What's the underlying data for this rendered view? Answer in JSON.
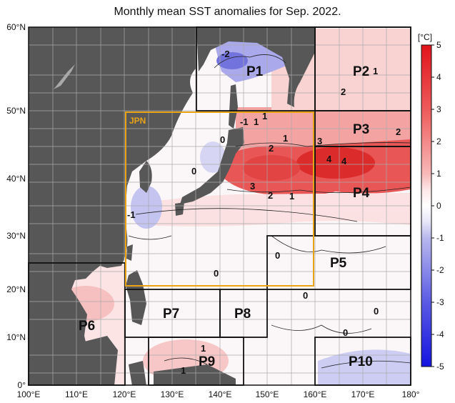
{
  "title": "Monthly mean SST anomalies for Sep. 2022.",
  "colors": {
    "land": "#555555",
    "ocean_base": "#f7f3f4",
    "jpn_box": "#e8a317",
    "grid": "#bbbbbb"
  },
  "axes": {
    "lon_ticks": [
      "100°E",
      "110°E",
      "120°E",
      "130°E",
      "140°E",
      "150°E",
      "160°E",
      "170°E",
      "180°"
    ],
    "lat_ticks": [
      "60°N",
      "50°N",
      "40°N",
      "30°N",
      "20°N",
      "10°N",
      "0°"
    ]
  },
  "regions": {
    "jpn": "JPN",
    "p1": "P1",
    "p2": "P2",
    "p3": "P3",
    "p4": "P4",
    "p5": "P5",
    "p6": "P6",
    "p7": "P7",
    "p8": "P8",
    "p9": "P9",
    "p10": "P10"
  },
  "contour_labels": {
    "c1": "-2",
    "c2": "-1",
    "c3": "1",
    "c4": "1",
    "c5": "2",
    "c6": "1",
    "c7": "0",
    "c8": "0",
    "c9": "3",
    "c10": "2",
    "c11": "1",
    "c12": "-1",
    "c13": "3",
    "c14": "4",
    "c15": "4",
    "c16": "2",
    "c17": "2",
    "c18": "1",
    "c19": "0",
    "c20": "0",
    "c21": "0",
    "c22": "0",
    "c23": "0",
    "c24": "1",
    "c25": "1"
  },
  "colorbar": {
    "unit": "[°C]",
    "labels": [
      "5",
      "4",
      "3",
      "2",
      "1",
      "0",
      "-1",
      "-2",
      "-3",
      "-4",
      "-5"
    ]
  }
}
